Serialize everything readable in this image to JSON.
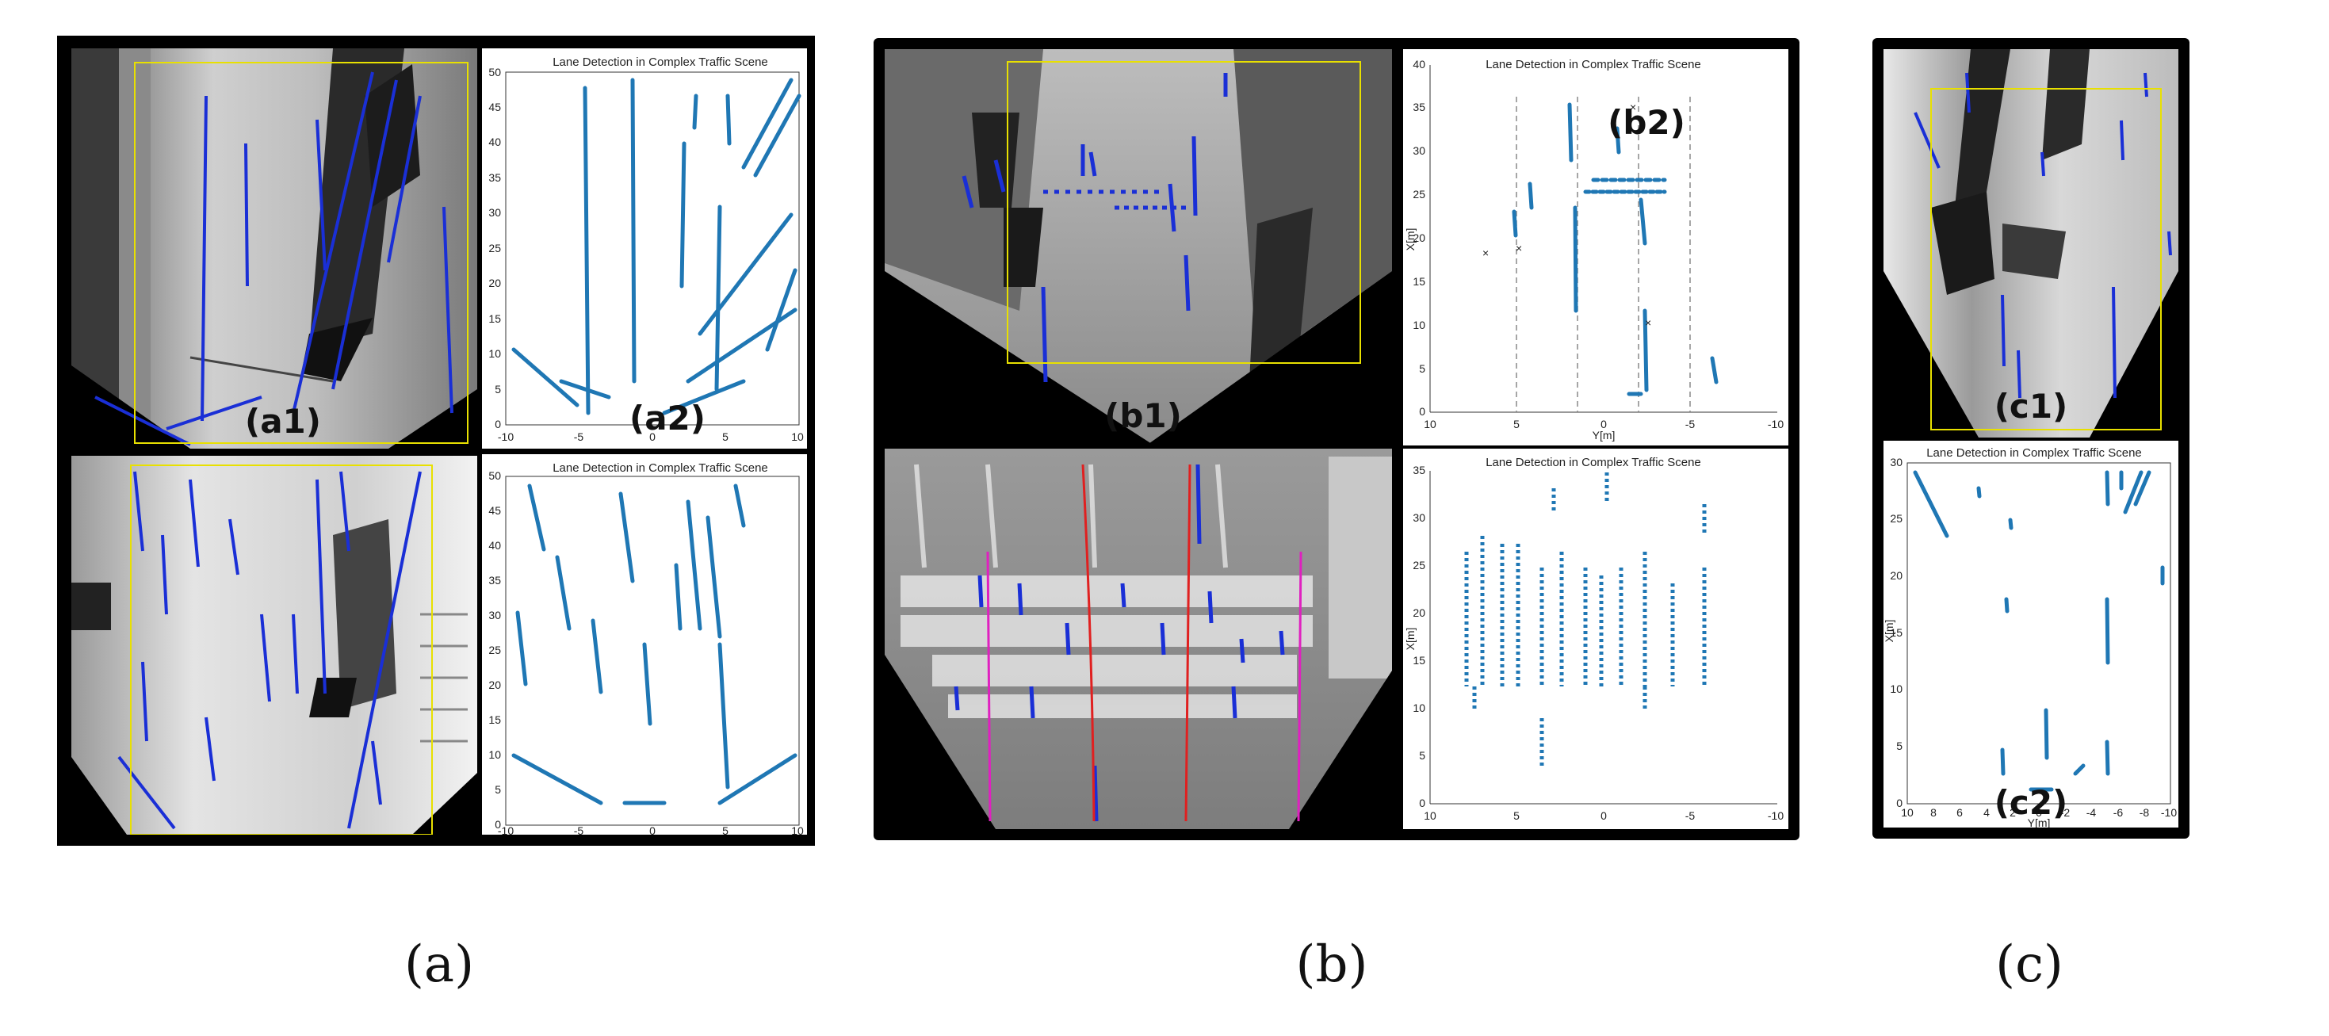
{
  "labels": {
    "a1": "(a1)",
    "a2": "(a2)",
    "b1": "(b1)",
    "b2": "(b2)",
    "c1": "(c1)",
    "c2": "(c2)"
  },
  "captions": {
    "a": "(a)",
    "b": "(b)",
    "c": "(c)"
  },
  "plot_title": "Lane Detection in Complex Traffic Scene",
  "axis": {
    "xlabel": "Y[m]",
    "ylabel": "X[m]"
  },
  "colors": {
    "lane_points": "#1f77b4",
    "detected_overlay": "#1a2fd6",
    "roi_box": "#e8e000",
    "fit_red": "#e02020",
    "fit_magenta": "#e020c0"
  },
  "chart_data": [
    {
      "id": "a2",
      "type": "scatter",
      "title": "Lane Detection in Complex Traffic Scene",
      "xlim": [
        10,
        -10
      ],
      "ylim": [
        0,
        50
      ],
      "xticks": [
        "-10",
        "-5",
        "0",
        "5",
        "10"
      ],
      "yticks": [
        "0",
        "5",
        "10",
        "15",
        "20",
        "25",
        "30",
        "35",
        "40",
        "45",
        "50"
      ]
    },
    {
      "id": "a2-bottom",
      "type": "scatter",
      "title": "Lane Detection in Complex Traffic Scene",
      "xlim": [
        10,
        -10
      ],
      "ylim": [
        0,
        50
      ],
      "xticks": [
        "-10",
        "-5",
        "0",
        "5",
        "10"
      ],
      "yticks": [
        "0",
        "5",
        "10",
        "15",
        "20",
        "25",
        "30",
        "35",
        "40",
        "45",
        "50"
      ]
    },
    {
      "id": "b2",
      "type": "scatter",
      "title": "Lane Detection in Complex Traffic Scene",
      "xlabel": "Y[m]",
      "ylabel": "X[m]",
      "xlim": [
        10,
        -10
      ],
      "ylim": [
        0,
        40
      ],
      "xticks": [
        "10",
        "5",
        "0",
        "-5",
        "-10"
      ],
      "yticks": [
        "0",
        "5",
        "10",
        "15",
        "20",
        "25",
        "30",
        "35",
        "40"
      ],
      "lane_boundaries": [
        5,
        1.5,
        -2,
        -5
      ]
    },
    {
      "id": "b2-bottom",
      "type": "scatter",
      "title": "Lane Detection in Complex Traffic Scene",
      "ylabel": "X[m]",
      "xlim": [
        10,
        -10
      ],
      "ylim": [
        0,
        35
      ],
      "xticks": [
        "10",
        "5",
        "0",
        "-5",
        "-10"
      ],
      "yticks": [
        "0",
        "5",
        "10",
        "15",
        "20",
        "25",
        "30",
        "35"
      ]
    },
    {
      "id": "c2",
      "type": "scatter",
      "title": "Lane Detection in Complex Traffic Scene",
      "xlabel": "Y[m]",
      "ylabel": "X[m]",
      "xlim": [
        10,
        -10
      ],
      "ylim": [
        0,
        30
      ],
      "xticks": [
        "10",
        "8",
        "6",
        "4",
        "2",
        "0",
        "-2",
        "-4",
        "-6",
        "-8",
        "-10"
      ],
      "yticks": [
        "0",
        "5",
        "10",
        "15",
        "20",
        "25",
        "30"
      ]
    }
  ]
}
